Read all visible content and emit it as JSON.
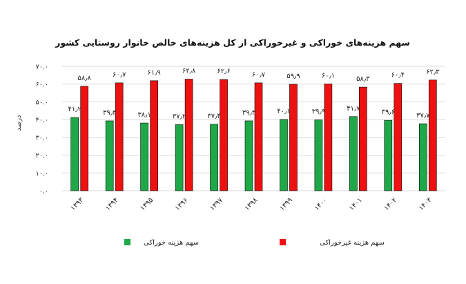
{
  "chart_data": {
    "type": "bar",
    "title": "سهم هزینه‌های خوراکی و غیرخوراکی از کل هزینه‌های خالص خانوار روستایی کشور",
    "ylabel": "درصد",
    "xlabel": "",
    "ylim": [
      0,
      70
    ],
    "y_ticks": [
      "۰.۰",
      "۱۰.۰",
      "۲۰.۰",
      "۳۰.۰",
      "۴۰.۰",
      "۵۰.۰",
      "۶۰.۰",
      "۷۰.۰"
    ],
    "y_tick_values": [
      0,
      10,
      20,
      30,
      40,
      50,
      60,
      70
    ],
    "grid": true,
    "legend_position": "bottom",
    "categories": [
      "۱۳۹۳",
      "۱۳۹۴",
      "۱۳۹۵",
      "۱۳۹۶",
      "۱۳۹۷",
      "۱۳۹۸",
      "۱۳۹۹",
      "۱۴۰۰",
      "۱۴۰۱",
      "۱۴۰۲",
      "۱۴۰۳"
    ],
    "series": [
      {
        "name": "سهم هزینه خوراکی",
        "color": "#1fa847",
        "values": [
          41.2,
          39.3,
          38.1,
          37.2,
          37.4,
          39.3,
          40.1,
          39.9,
          41.7,
          39.6,
          37.7
        ],
        "labels": [
          "۴۱٫۲",
          "۳۹٫۳",
          "۳۸٫۱",
          "۳۷٫۲",
          "۳۷٫۴",
          "۳۹٫۳",
          "۴۰٫۱",
          "۳۹٫۹",
          "۴۱٫۷",
          "۳۹٫۶",
          "۳۷٫۷"
        ]
      },
      {
        "name": "سهم هزینه غیرخوراکی",
        "color": "#ee1111",
        "values": [
          58.8,
          60.7,
          61.9,
          62.8,
          62.6,
          60.7,
          59.9,
          60.1,
          58.3,
          60.4,
          62.3
        ],
        "labels": [
          "۵۸٫۸",
          "۶۰٫۷",
          "۶۱٫۹",
          "۶۲٫۸",
          "۶۲٫۶",
          "۶۰٫۷",
          "۵۹٫۹",
          "۶۰٫۱",
          "۵۸٫۳",
          "۶۰٫۴",
          "۶۲٫۳"
        ]
      }
    ]
  }
}
